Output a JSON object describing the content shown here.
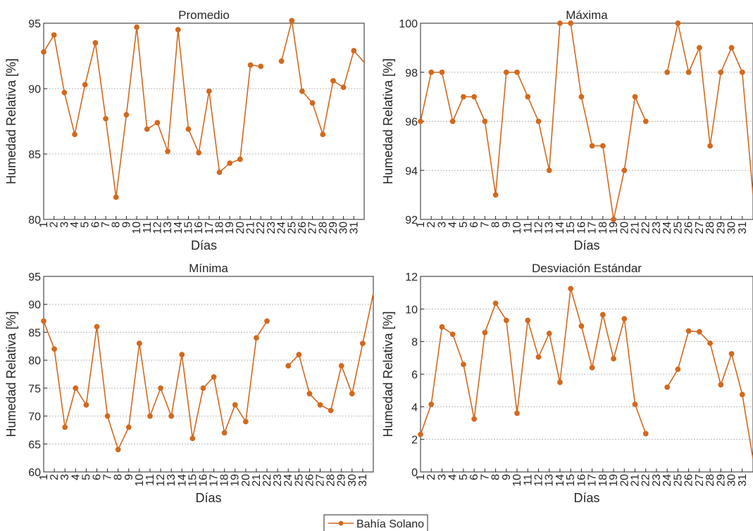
{
  "legend": {
    "label": "Bahía Solano",
    "location": "bottom-center"
  },
  "colors": {
    "series": "#D2691E",
    "grid": "#b8b8b8",
    "axis": "#262626"
  },
  "chart_data": [
    {
      "type": "line",
      "title": "Promedio",
      "xlabel": "Días",
      "ylabel": "Humedad Relativa [%]",
      "ylim": [
        80,
        95
      ],
      "yticks": [
        80,
        85,
        90,
        95
      ],
      "xlim": [
        1,
        32
      ],
      "grid": "horizontal dotted",
      "x": [
        1,
        2,
        3,
        4,
        5,
        6,
        7,
        8,
        9,
        10,
        11,
        12,
        13,
        14,
        15,
        16,
        17,
        18,
        19,
        20,
        21,
        22,
        23,
        24,
        25,
        26,
        27,
        28,
        29,
        30,
        31,
        32
      ],
      "series": [
        {
          "name": "Bahía Solano",
          "values": [
            92.8,
            94.1,
            89.7,
            86.5,
            90.3,
            93.5,
            87.7,
            81.7,
            88.0,
            94.7,
            86.9,
            87.4,
            85.2,
            94.5,
            86.9,
            85.1,
            89.8,
            83.6,
            84.3,
            84.6,
            91.8,
            91.7,
            null,
            92.1,
            95.2,
            89.8,
            88.9,
            86.5,
            90.6,
            90.1,
            92.9,
            92.0
          ]
        }
      ]
    },
    {
      "type": "line",
      "title": "Máxima",
      "xlabel": "Días",
      "ylabel": "Humedad Relativa [%]",
      "ylim": [
        92,
        100
      ],
      "yticks": [
        92,
        94,
        96,
        98,
        100
      ],
      "xlim": [
        1,
        32
      ],
      "grid": "horizontal dotted",
      "x": [
        1,
        2,
        3,
        4,
        5,
        6,
        7,
        8,
        9,
        10,
        11,
        12,
        13,
        14,
        15,
        16,
        17,
        18,
        19,
        20,
        21,
        22,
        23,
        24,
        25,
        26,
        27,
        28,
        29,
        30,
        31,
        32
      ],
      "series": [
        {
          "name": "Bahía Solano",
          "values": [
            96,
            98,
            98,
            96,
            97,
            97,
            96,
            93,
            98,
            98,
            97,
            96,
            94,
            100,
            100,
            97,
            95,
            95,
            92,
            94,
            97,
            96,
            null,
            98,
            100,
            98,
            99,
            95,
            98,
            99,
            98,
            93
          ]
        }
      ]
    },
    {
      "type": "line",
      "title": "Mínima",
      "xlabel": "Días",
      "ylabel": "Humedad Relativa [%]",
      "ylim": [
        60,
        95
      ],
      "yticks": [
        60,
        65,
        70,
        75,
        80,
        85,
        90,
        95
      ],
      "xlim": [
        1,
        32
      ],
      "grid": "horizontal dotted",
      "x": [
        1,
        2,
        3,
        4,
        5,
        6,
        7,
        8,
        9,
        10,
        11,
        12,
        13,
        14,
        15,
        16,
        17,
        18,
        19,
        20,
        21,
        22,
        23,
        24,
        25,
        26,
        27,
        28,
        29,
        30,
        31,
        32
      ],
      "series": [
        {
          "name": "Bahía Solano",
          "values": [
            87,
            82,
            68,
            75,
            72,
            86,
            70,
            64,
            68,
            83,
            70,
            75,
            70,
            81,
            66,
            75,
            77,
            67,
            72,
            69,
            84,
            87,
            null,
            79,
            81,
            74,
            72,
            71,
            79,
            74,
            83,
            92
          ]
        }
      ]
    },
    {
      "type": "line",
      "title": "Desviación Estándar",
      "xlabel": "Días",
      "ylabel": "Humedad Relativa [%]",
      "ylim": [
        0,
        12
      ],
      "yticks": [
        0,
        2,
        4,
        6,
        8,
        10,
        12
      ],
      "xlim": [
        1,
        32
      ],
      "grid": "horizontal dotted",
      "x": [
        1,
        2,
        3,
        4,
        5,
        6,
        7,
        8,
        9,
        10,
        11,
        12,
        13,
        14,
        15,
        16,
        17,
        18,
        19,
        20,
        21,
        22,
        23,
        24,
        25,
        26,
        27,
        28,
        29,
        30,
        31,
        32
      ],
      "series": [
        {
          "name": "Bahía Solano",
          "values": [
            2.3,
            4.15,
            8.9,
            8.45,
            6.6,
            3.25,
            8.55,
            10.35,
            9.3,
            3.6,
            9.3,
            7.05,
            8.5,
            5.5,
            11.25,
            8.95,
            6.4,
            9.65,
            6.95,
            9.4,
            4.15,
            2.35,
            null,
            5.2,
            6.3,
            8.65,
            8.6,
            7.9,
            5.35,
            7.25,
            4.75,
            0.8
          ]
        }
      ]
    }
  ]
}
